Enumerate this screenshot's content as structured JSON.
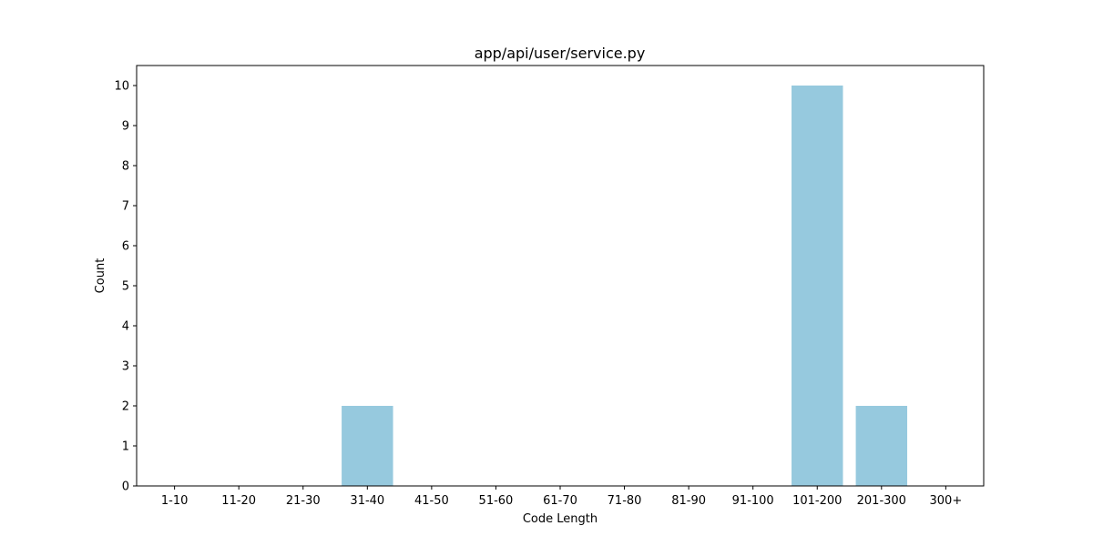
{
  "chart_data": {
    "type": "bar",
    "title": "app/api/user/service.py",
    "xlabel": "Code Length",
    "ylabel": "Count",
    "categories": [
      "1-10",
      "11-20",
      "21-30",
      "31-40",
      "41-50",
      "51-60",
      "61-70",
      "71-80",
      "81-90",
      "91-100",
      "101-200",
      "201-300",
      "300+"
    ],
    "values": [
      0,
      0,
      0,
      2,
      0,
      0,
      0,
      0,
      0,
      0,
      10,
      2,
      0
    ],
    "ylim": [
      0,
      10.5
    ],
    "yticks": [
      0,
      1,
      2,
      3,
      4,
      5,
      6,
      7,
      8,
      9,
      10
    ],
    "grid": false,
    "bar_color": "#96c9de"
  }
}
